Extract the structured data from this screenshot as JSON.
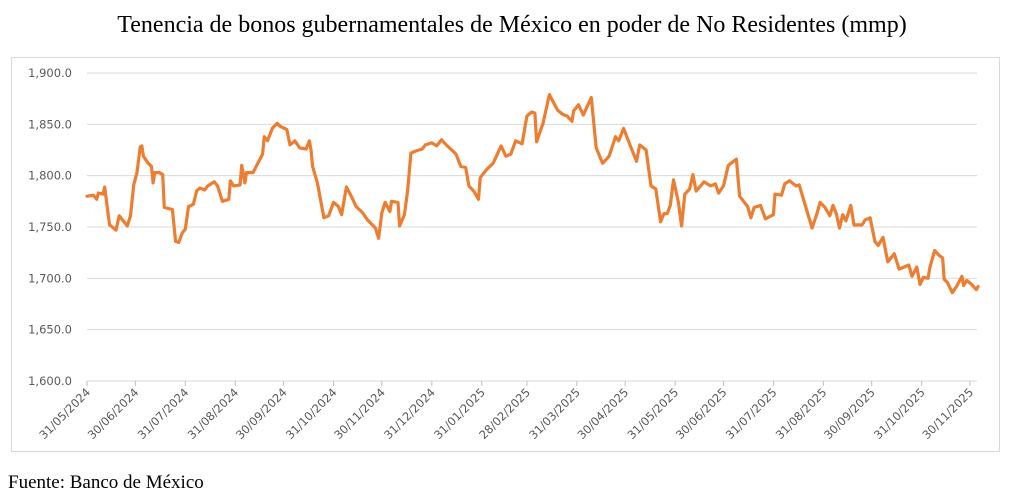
{
  "chart_data": {
    "type": "line",
    "title": "Tenencia de bonos gubernamentales de México en poder de No Residentes (mmp)",
    "xlabel": "",
    "ylabel": "",
    "ylim": [
      1600,
      1900
    ],
    "yticks": [
      "1,600.0",
      "1,650.0",
      "1,700.0",
      "1,750.0",
      "1,800.0",
      "1,850.0",
      "1,900.0"
    ],
    "ytick_values": [
      1600,
      1650,
      1700,
      1750,
      1800,
      1850,
      1900
    ],
    "xlim": [
      "2024-05-31",
      "2025-11-30"
    ],
    "xticks": [
      "31/05/2024",
      "30/06/2024",
      "31/07/2024",
      "31/08/2024",
      "30/09/2024",
      "31/10/2024",
      "30/11/2024",
      "31/12/2024",
      "31/01/2025",
      "28/02/2025",
      "31/03/2025",
      "30/04/2025",
      "31/05/2025",
      "30/06/2025",
      "31/07/2025",
      "31/08/2025",
      "30/09/2025",
      "31/10/2025",
      "30/11/2025"
    ],
    "grid": true,
    "legend": "none",
    "line_color": "#ED7D31",
    "series": [
      {
        "x": [
          "2024-05-31",
          "2024-06-04",
          "2024-06-06",
          "2024-06-07",
          "2024-06-10",
          "2024-06-11",
          "2024-06-13",
          "2024-06-14",
          "2024-06-18",
          "2024-06-20",
          "2024-06-22",
          "2024-06-25",
          "2024-06-27",
          "2024-06-29",
          "2024-07-01",
          "2024-07-03",
          "2024-07-04",
          "2024-07-05",
          "2024-07-08",
          "2024-07-10",
          "2024-07-11",
          "2024-07-12",
          "2024-07-15",
          "2024-07-17",
          "2024-07-18",
          "2024-07-23",
          "2024-07-25",
          "2024-07-27",
          "2024-07-29",
          "2024-07-31",
          "2024-08-02",
          "2024-08-05",
          "2024-08-07",
          "2024-08-09",
          "2024-08-12",
          "2024-08-14",
          "2024-08-18",
          "2024-08-20",
          "2024-08-23",
          "2024-08-27",
          "2024-08-28",
          "2024-08-30",
          "2024-09-03",
          "2024-09-04",
          "2024-09-06",
          "2024-09-07",
          "2024-09-11",
          "2024-09-14",
          "2024-09-17",
          "2024-09-18",
          "2024-09-20",
          "2024-09-23",
          "2024-09-26",
          "2024-09-28",
          "2024-10-02",
          "2024-10-04",
          "2024-10-07",
          "2024-10-10",
          "2024-10-14",
          "2024-10-16",
          "2024-10-17",
          "2024-10-18",
          "2024-10-21",
          "2024-10-25",
          "2024-10-28",
          "2024-10-31",
          "2024-11-03",
          "2024-11-05",
          "2024-11-08",
          "2024-11-11",
          "2024-11-14",
          "2024-11-18",
          "2024-11-21",
          "2024-11-26",
          "2024-11-28",
          "2024-11-30",
          "2024-12-02",
          "2024-12-05",
          "2024-12-06",
          "2024-12-10",
          "2024-12-11",
          "2024-12-14",
          "2024-12-16",
          "2024-12-18",
          "2024-12-21",
          "2024-12-25",
          "2024-12-27",
          "2024-12-31",
          "2025-01-03",
          "2025-01-06",
          "2025-01-09",
          "2025-01-13",
          "2025-01-15",
          "2025-01-18",
          "2025-01-21",
          "2025-01-23",
          "2025-01-26",
          "2025-01-29",
          "2025-01-30",
          "2025-02-03",
          "2025-02-07",
          "2025-02-12",
          "2025-02-15",
          "2025-02-18",
          "2025-02-21",
          "2025-02-25",
          "2025-02-28",
          "2025-03-03",
          "2025-03-05",
          "2025-03-06",
          "2025-03-10",
          "2025-03-14",
          "2025-03-19",
          "2025-03-22",
          "2025-03-25",
          "2025-03-28",
          "2025-03-29",
          "2025-04-01",
          "2025-04-04",
          "2025-04-09",
          "2025-04-12",
          "2025-04-16",
          "2025-04-20",
          "2025-04-24",
          "2025-04-26",
          "2025-04-29",
          "2025-05-03",
          "2025-05-07",
          "2025-05-09",
          "2025-05-13",
          "2025-05-16",
          "2025-05-19",
          "2025-05-22",
          "2025-05-24",
          "2025-05-26",
          "2025-05-28",
          "2025-05-30",
          "2025-06-02",
          "2025-06-04",
          "2025-06-06",
          "2025-06-09",
          "2025-06-11",
          "2025-06-13",
          "2025-06-18",
          "2025-06-22",
          "2025-06-25",
          "2025-06-27",
          "2025-06-30",
          "2025-07-03",
          "2025-07-08",
          "2025-07-10",
          "2025-07-15",
          "2025-07-17",
          "2025-07-19",
          "2025-07-23",
          "2025-07-26",
          "2025-07-31",
          "2025-08-01",
          "2025-08-05",
          "2025-08-07",
          "2025-08-10",
          "2025-08-14",
          "2025-08-16",
          "2025-08-20",
          "2025-08-24",
          "2025-08-27",
          "2025-08-29",
          "2025-09-01",
          "2025-09-04",
          "2025-09-06",
          "2025-09-08",
          "2025-09-10",
          "2025-09-12",
          "2025-09-14",
          "2025-09-17",
          "2025-09-19",
          "2025-09-24",
          "2025-09-26",
          "2025-09-29",
          "2025-10-02",
          "2025-10-04",
          "2025-10-07",
          "2025-10-10",
          "2025-10-14",
          "2025-10-17",
          "2025-10-23",
          "2025-10-25",
          "2025-10-28",
          "2025-10-30",
          "2025-11-01",
          "2025-11-04",
          "2025-11-05",
          "2025-11-08",
          "2025-11-11",
          "2025-11-13",
          "2025-11-14",
          "2025-11-16",
          "2025-11-19",
          "2025-11-22",
          "2025-11-25",
          "2025-11-26",
          "2025-11-28",
          "2025-12-01",
          "2025-12-04",
          "2025-12-05"
        ],
        "y": [
          1780,
          1781,
          1777,
          1783,
          1782,
          1789,
          1764,
          1752,
          1747,
          1761,
          1757,
          1751,
          1761,
          1791,
          1803,
          1828,
          1829,
          1819,
          1812,
          1809,
          1793,
          1803,
          1803,
          1801,
          1769,
          1767,
          1736,
          1735,
          1744,
          1748,
          1770,
          1772,
          1785,
          1788,
          1786,
          1790,
          1794,
          1790,
          1775,
          1777,
          1795,
          1790,
          1791,
          1810,
          1793,
          1803,
          1803,
          1812,
          1821,
          1838,
          1834,
          1846,
          1851,
          1848,
          1845,
          1830,
          1834,
          1827,
          1826,
          1834,
          1825,
          1809,
          1793,
          1759,
          1761,
          1774,
          1770,
          1762,
          1789,
          1780,
          1770,
          1764,
          1757,
          1749,
          1739,
          1764,
          1774,
          1765,
          1775,
          1774,
          1751,
          1762,
          1786,
          1822,
          1824,
          1826,
          1830,
          1832,
          1829,
          1835,
          1830,
          1824,
          1821,
          1809,
          1808,
          1790,
          1785,
          1777,
          1798,
          1806,
          1812,
          1829,
          1819,
          1821,
          1834,
          1831,
          1858,
          1862,
          1861,
          1833,
          1851,
          1879,
          1864,
          1860,
          1858,
          1853,
          1863,
          1869,
          1859,
          1876,
          1827,
          1812,
          1819,
          1838,
          1834,
          1846,
          1830,
          1814,
          1830,
          1825,
          1790,
          1787,
          1755,
          1763,
          1763,
          1771,
          1796,
          1774,
          1751,
          1782,
          1787,
          1801,
          1785,
          1794,
          1790,
          1792,
          1783,
          1790,
          1810,
          1816,
          1780,
          1770,
          1759,
          1769,
          1771,
          1758,
          1762,
          1782,
          1781,
          1792,
          1795,
          1790,
          1791,
          1770,
          1749,
          1763,
          1774,
          1769,
          1761,
          1771,
          1763,
          1749,
          1762,
          1756,
          1771,
          1752,
          1752,
          1757,
          1759,
          1736,
          1732,
          1740,
          1716,
          1724,
          1709,
          1713,
          1702,
          1711,
          1694,
          1701,
          1700,
          1710,
          1727,
          1722,
          1720,
          1699,
          1696,
          1686,
          1693,
          1702,
          1693,
          1698,
          1694,
          1689,
          1692
        ]
      }
    ],
    "source": "Fuente: Banco de México"
  }
}
